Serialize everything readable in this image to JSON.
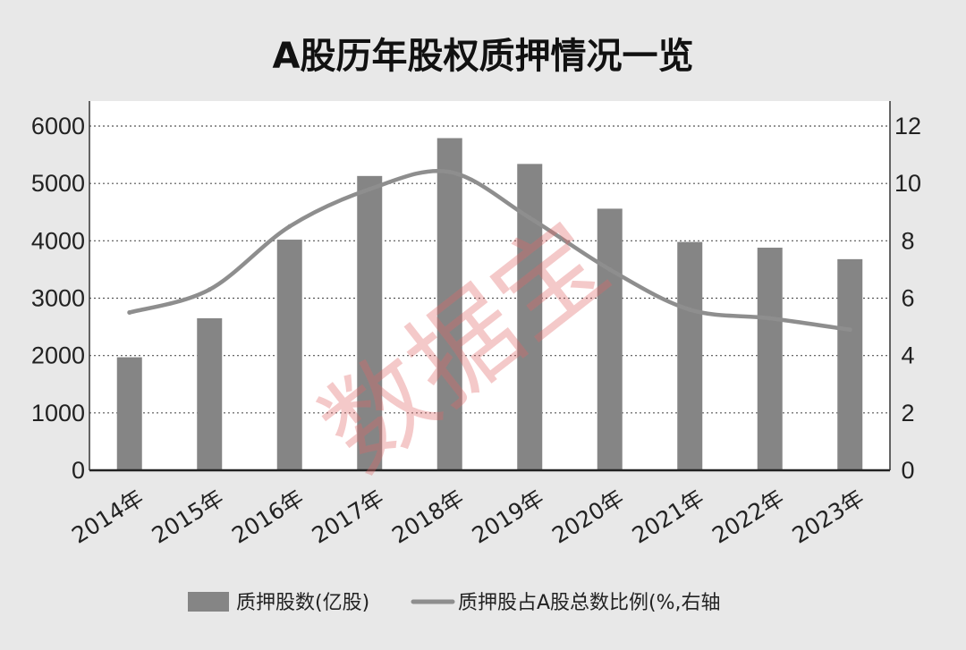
{
  "colors": {
    "background": "#e8e8e8",
    "plot_background": "#ffffff",
    "bar": "#858585",
    "line": "#8e8e8e",
    "gridline": "#555555",
    "watermark": "#e06868"
  },
  "watermark": "数据宝",
  "chart_data": {
    "type": "bar",
    "title": "A股历年股权质押情况一览",
    "categories": [
      "2014年",
      "2015年",
      "2016年",
      "2017年",
      "2018年",
      "2019年",
      "2020年",
      "2021年",
      "2022年",
      "2023年"
    ],
    "y_left": {
      "ylim": [
        0,
        6000
      ],
      "ticks": [
        0,
        1000,
        2000,
        3000,
        4000,
        5000,
        6000
      ]
    },
    "y_right": {
      "ylim": [
        0,
        12
      ],
      "ticks": [
        0,
        2,
        4,
        6,
        8,
        10,
        12
      ]
    },
    "grid": true,
    "legend_position": "bottom",
    "series": [
      {
        "name": "质押股数(亿股)",
        "type": "bar",
        "axis": "left",
        "values": [
          1970,
          2650,
          4020,
          5130,
          5790,
          5340,
          4560,
          3980,
          3880,
          3680
        ]
      },
      {
        "name": "质押股占A股总数比例(%,右轴",
        "type": "line",
        "axis": "right",
        "values": [
          5.5,
          6.3,
          8.5,
          9.8,
          10.4,
          8.8,
          7.0,
          5.6,
          5.3,
          4.9
        ]
      }
    ]
  }
}
